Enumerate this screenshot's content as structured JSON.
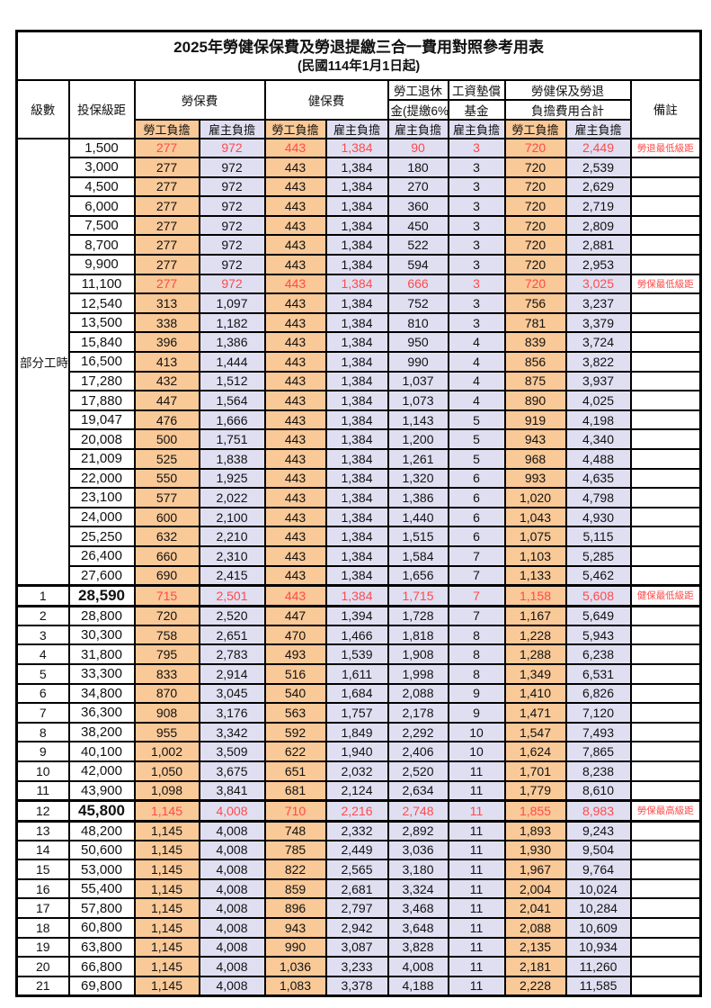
{
  "title": "2025年勞健保保費及勞退提繳三合一費用對照參考用表",
  "subtitle": "(民國114年1月1日起)",
  "colors": {
    "employee_bg": "#F9C998",
    "employer_bg": "#E0DFF2",
    "highlight_red": "#FF4A4A",
    "border": "#000000"
  },
  "header": {
    "level": "級數",
    "bracket": "投保級距",
    "labor_insurance": "勞保費",
    "health_insurance": "健保費",
    "pension_line1": "勞工退休",
    "pension_line2": "金(提繳6%)",
    "wage_fund_line1": "工資墊償",
    "wage_fund_line2": "基金",
    "total_line1": "勞健保及勞退",
    "total_line2": "負擔費用合計",
    "remark": "備註",
    "employee_share": "勞工負擔",
    "employer_share": "雇主負擔"
  },
  "part_time_label": "部分工時",
  "rows": [
    {
      "level": "",
      "part_span": true,
      "bracket": "1,500",
      "values": [
        "277",
        "972",
        "443",
        "1,384",
        "90",
        "3",
        "720",
        "2,449"
      ],
      "remark": "勞退最低級距",
      "red": true
    },
    {
      "level": "",
      "bracket": "3,000",
      "values": [
        "277",
        "972",
        "443",
        "1,384",
        "180",
        "3",
        "720",
        "2,539"
      ],
      "remark": ""
    },
    {
      "level": "",
      "bracket": "4,500",
      "values": [
        "277",
        "972",
        "443",
        "1,384",
        "270",
        "3",
        "720",
        "2,629"
      ],
      "remark": ""
    },
    {
      "level": "",
      "bracket": "6,000",
      "values": [
        "277",
        "972",
        "443",
        "1,384",
        "360",
        "3",
        "720",
        "2,719"
      ],
      "remark": ""
    },
    {
      "level": "",
      "bracket": "7,500",
      "values": [
        "277",
        "972",
        "443",
        "1,384",
        "450",
        "3",
        "720",
        "2,809"
      ],
      "remark": ""
    },
    {
      "level": "",
      "bracket": "8,700",
      "values": [
        "277",
        "972",
        "443",
        "1,384",
        "522",
        "3",
        "720",
        "2,881"
      ],
      "remark": ""
    },
    {
      "level": "",
      "bracket": "9,900",
      "values": [
        "277",
        "972",
        "443",
        "1,384",
        "594",
        "3",
        "720",
        "2,953"
      ],
      "remark": ""
    },
    {
      "level": "",
      "bracket": "11,100",
      "values": [
        "277",
        "972",
        "443",
        "1,384",
        "666",
        "3",
        "720",
        "3,025"
      ],
      "remark": "勞保最低級距",
      "red": true
    },
    {
      "level": "",
      "bracket": "12,540",
      "values": [
        "313",
        "1,097",
        "443",
        "1,384",
        "752",
        "3",
        "756",
        "3,237"
      ],
      "remark": ""
    },
    {
      "level": "",
      "bracket": "13,500",
      "values": [
        "338",
        "1,182",
        "443",
        "1,384",
        "810",
        "3",
        "781",
        "3,379"
      ],
      "remark": ""
    },
    {
      "level": "",
      "bracket": "15,840",
      "values": [
        "396",
        "1,386",
        "443",
        "1,384",
        "950",
        "4",
        "839",
        "3,724"
      ],
      "remark": ""
    },
    {
      "level": "",
      "bracket": "16,500",
      "values": [
        "413",
        "1,444",
        "443",
        "1,384",
        "990",
        "4",
        "856",
        "3,822"
      ],
      "remark": ""
    },
    {
      "level": "",
      "bracket": "17,280",
      "values": [
        "432",
        "1,512",
        "443",
        "1,384",
        "1,037",
        "4",
        "875",
        "3,937"
      ],
      "remark": ""
    },
    {
      "level": "",
      "bracket": "17,880",
      "values": [
        "447",
        "1,564",
        "443",
        "1,384",
        "1,073",
        "4",
        "890",
        "4,025"
      ],
      "remark": ""
    },
    {
      "level": "",
      "bracket": "19,047",
      "values": [
        "476",
        "1,666",
        "443",
        "1,384",
        "1,143",
        "5",
        "919",
        "4,198"
      ],
      "remark": ""
    },
    {
      "level": "",
      "bracket": "20,008",
      "values": [
        "500",
        "1,751",
        "443",
        "1,384",
        "1,200",
        "5",
        "943",
        "4,340"
      ],
      "remark": ""
    },
    {
      "level": "",
      "bracket": "21,009",
      "values": [
        "525",
        "1,838",
        "443",
        "1,384",
        "1,261",
        "5",
        "968",
        "4,488"
      ],
      "remark": ""
    },
    {
      "level": "",
      "bracket": "22,000",
      "values": [
        "550",
        "1,925",
        "443",
        "1,384",
        "1,320",
        "6",
        "993",
        "4,635"
      ],
      "remark": ""
    },
    {
      "level": "",
      "bracket": "23,100",
      "values": [
        "577",
        "2,022",
        "443",
        "1,384",
        "1,386",
        "6",
        "1,020",
        "4,798"
      ],
      "remark": ""
    },
    {
      "level": "",
      "bracket": "24,000",
      "values": [
        "600",
        "2,100",
        "443",
        "1,384",
        "1,440",
        "6",
        "1,043",
        "4,930"
      ],
      "remark": ""
    },
    {
      "level": "",
      "bracket": "25,250",
      "values": [
        "632",
        "2,210",
        "443",
        "1,384",
        "1,515",
        "6",
        "1,075",
        "5,115"
      ],
      "remark": ""
    },
    {
      "level": "",
      "bracket": "26,400",
      "values": [
        "660",
        "2,310",
        "443",
        "1,384",
        "1,584",
        "7",
        "1,103",
        "5,285"
      ],
      "remark": ""
    },
    {
      "level": "",
      "bracket": "27,600",
      "values": [
        "690",
        "2,415",
        "443",
        "1,384",
        "1,656",
        "7",
        "1,133",
        "5,462"
      ],
      "remark": ""
    },
    {
      "level": "1",
      "bracket": "28,590",
      "values": [
        "715",
        "2,501",
        "443",
        "1,384",
        "1,715",
        "7",
        "1,158",
        "5,608"
      ],
      "remark": "健保最低級距",
      "red": true,
      "bold": true,
      "thick": true
    },
    {
      "level": "2",
      "bracket": "28,800",
      "values": [
        "720",
        "2,520",
        "447",
        "1,394",
        "1,728",
        "7",
        "1,167",
        "5,649"
      ],
      "remark": ""
    },
    {
      "level": "3",
      "bracket": "30,300",
      "values": [
        "758",
        "2,651",
        "470",
        "1,466",
        "1,818",
        "8",
        "1,228",
        "5,943"
      ],
      "remark": ""
    },
    {
      "level": "4",
      "bracket": "31,800",
      "values": [
        "795",
        "2,783",
        "493",
        "1,539",
        "1,908",
        "8",
        "1,288",
        "6,238"
      ],
      "remark": ""
    },
    {
      "level": "5",
      "bracket": "33,300",
      "values": [
        "833",
        "2,914",
        "516",
        "1,611",
        "1,998",
        "8",
        "1,349",
        "6,531"
      ],
      "remark": ""
    },
    {
      "level": "6",
      "bracket": "34,800",
      "values": [
        "870",
        "3,045",
        "540",
        "1,684",
        "2,088",
        "9",
        "1,410",
        "6,826"
      ],
      "remark": ""
    },
    {
      "level": "7",
      "bracket": "36,300",
      "values": [
        "908",
        "3,176",
        "563",
        "1,757",
        "2,178",
        "9",
        "1,471",
        "7,120"
      ],
      "remark": ""
    },
    {
      "level": "8",
      "bracket": "38,200",
      "values": [
        "955",
        "3,342",
        "592",
        "1,849",
        "2,292",
        "10",
        "1,547",
        "7,493"
      ],
      "remark": ""
    },
    {
      "level": "9",
      "bracket": "40,100",
      "values": [
        "1,002",
        "3,509",
        "622",
        "1,940",
        "2,406",
        "10",
        "1,624",
        "7,865"
      ],
      "remark": ""
    },
    {
      "level": "10",
      "bracket": "42,000",
      "values": [
        "1,050",
        "3,675",
        "651",
        "2,032",
        "2,520",
        "11",
        "1,701",
        "8,238"
      ],
      "remark": ""
    },
    {
      "level": "11",
      "bracket": "43,900",
      "values": [
        "1,098",
        "3,841",
        "681",
        "2,124",
        "2,634",
        "11",
        "1,779",
        "8,610"
      ],
      "remark": ""
    },
    {
      "level": "12",
      "bracket": "45,800",
      "values": [
        "1,145",
        "4,008",
        "710",
        "2,216",
        "2,748",
        "11",
        "1,855",
        "8,983"
      ],
      "remark": "勞保最高級距",
      "red": true,
      "bold": true,
      "thick": true
    },
    {
      "level": "13",
      "bracket": "48,200",
      "values": [
        "1,145",
        "4,008",
        "748",
        "2,332",
        "2,892",
        "11",
        "1,893",
        "9,243"
      ],
      "remark": ""
    },
    {
      "level": "14",
      "bracket": "50,600",
      "values": [
        "1,145",
        "4,008",
        "785",
        "2,449",
        "3,036",
        "11",
        "1,930",
        "9,504"
      ],
      "remark": ""
    },
    {
      "level": "15",
      "bracket": "53,000",
      "values": [
        "1,145",
        "4,008",
        "822",
        "2,565",
        "3,180",
        "11",
        "1,967",
        "9,764"
      ],
      "remark": ""
    },
    {
      "level": "16",
      "bracket": "55,400",
      "values": [
        "1,145",
        "4,008",
        "859",
        "2,681",
        "3,324",
        "11",
        "2,004",
        "10,024"
      ],
      "remark": ""
    },
    {
      "level": "17",
      "bracket": "57,800",
      "values": [
        "1,145",
        "4,008",
        "896",
        "2,797",
        "3,468",
        "11",
        "2,041",
        "10,284"
      ],
      "remark": ""
    },
    {
      "level": "18",
      "bracket": "60,800",
      "values": [
        "1,145",
        "4,008",
        "943",
        "2,942",
        "3,648",
        "11",
        "2,088",
        "10,609"
      ],
      "remark": ""
    },
    {
      "level": "19",
      "bracket": "63,800",
      "values": [
        "1,145",
        "4,008",
        "990",
        "3,087",
        "3,828",
        "11",
        "2,135",
        "10,934"
      ],
      "remark": ""
    },
    {
      "level": "20",
      "bracket": "66,800",
      "values": [
        "1,145",
        "4,008",
        "1,036",
        "3,233",
        "4,008",
        "11",
        "2,181",
        "11,260"
      ],
      "remark": ""
    },
    {
      "level": "21",
      "bracket": "69,800",
      "values": [
        "1,145",
        "4,008",
        "1,083",
        "3,378",
        "4,188",
        "11",
        "2,228",
        "11,585"
      ],
      "remark": ""
    }
  ]
}
